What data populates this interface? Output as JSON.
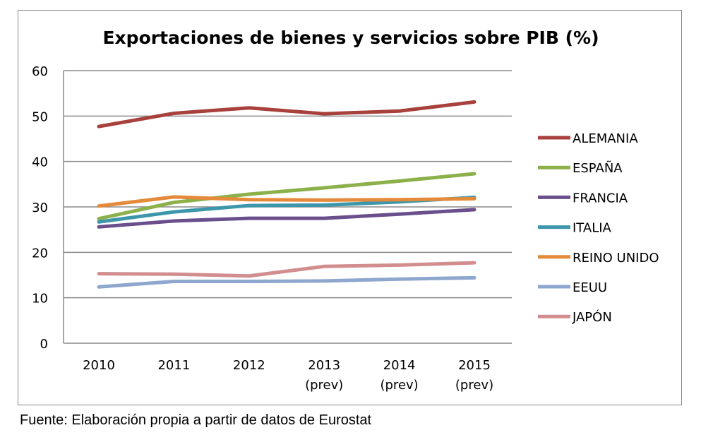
{
  "chart_data": {
    "type": "line",
    "title": "Exportaciones de bienes y servicios sobre PIB (%)",
    "categories": [
      [
        "2010"
      ],
      [
        "2011"
      ],
      [
        "2012"
      ],
      [
        "2013",
        "(prev)"
      ],
      [
        "2014",
        "(prev)"
      ],
      [
        "2015",
        "(prev)"
      ]
    ],
    "ylim": [
      0,
      60
    ],
    "yticks": [
      0,
      10,
      20,
      30,
      40,
      50,
      60
    ],
    "grid": true,
    "legend_position": "right",
    "series": [
      {
        "name": "ALEMANIA",
        "color": "#A8403C",
        "values": [
          47.7,
          50.6,
          51.8,
          50.5,
          51.1,
          53.1
        ]
      },
      {
        "name": "ESPAÑA",
        "color": "#8CB04A",
        "values": [
          27.4,
          31.0,
          32.8,
          34.2,
          35.7,
          37.3
        ]
      },
      {
        "name": "FRANCIA",
        "color": "#6A4F8C",
        "values": [
          25.6,
          26.9,
          27.5,
          27.5,
          28.4,
          29.4
        ]
      },
      {
        "name": "ITALIA",
        "color": "#3D97AB",
        "values": [
          26.7,
          28.9,
          30.3,
          30.4,
          31.1,
          32.1
        ]
      },
      {
        "name": "REINO UNIDO",
        "color": "#E58A3A",
        "values": [
          30.2,
          32.2,
          31.6,
          31.5,
          31.6,
          31.8
        ]
      },
      {
        "name": "EEUU",
        "color": "#8EA7CF",
        "values": [
          12.4,
          13.6,
          13.6,
          13.7,
          14.1,
          14.4
        ]
      },
      {
        "name": "JAPÓN",
        "color": "#D28E8F",
        "values": [
          15.3,
          15.2,
          14.8,
          16.9,
          17.2,
          17.7
        ]
      }
    ]
  },
  "source": "Fuente: Elaboración propia a partir de datos de Eurostat"
}
